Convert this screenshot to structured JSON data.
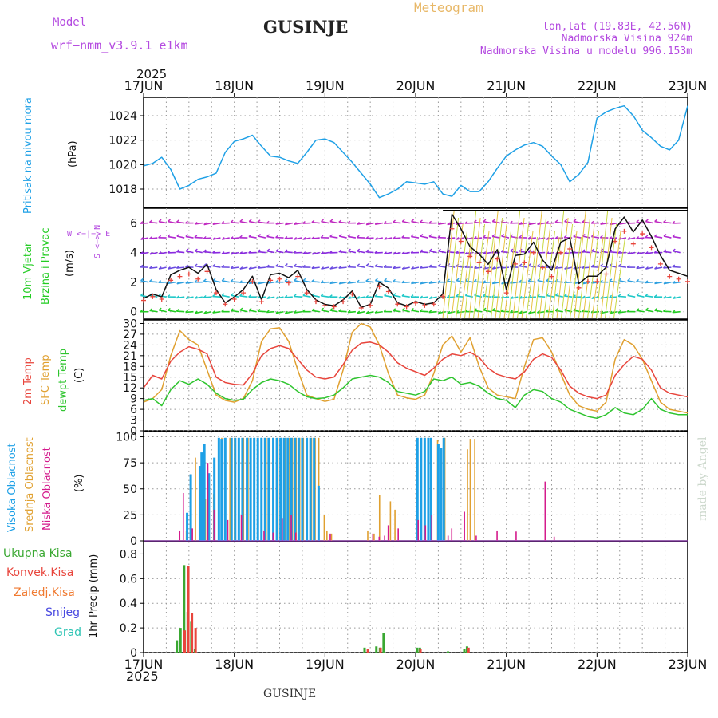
{
  "header": {
    "model_label": "Model",
    "model_name": "wrf−nmm_v3.9.1  e1km",
    "title": "GUSINJE",
    "meteogram": "Meteogram",
    "lonlat": "lon,lat (19.83E, 42.56N)",
    "elevation": "Nadmorska Visina 924m",
    "model_elevation": "Nadmorska Visina u modelu 996.153m",
    "year": "2025",
    "bottom_year": "2025",
    "footer": "GUSINJE",
    "credit": "made by Angel"
  },
  "colors": {
    "pressure": "#1ea0e6",
    "temp2m": "#e8453c",
    "sfc": "#e0a030",
    "dewpt": "#2ec42e",
    "high_cloud": "#1ea0e6",
    "mid_cloud": "#e0a030",
    "low_cloud": "#d41b8c",
    "total_rain": "#3aa832",
    "conv_rain": "#e8453c",
    "frozen": "#f07a30",
    "snow": "#4a4ae0",
    "hail": "#2ec4b4",
    "wind_label": "#22cc22",
    "model": "#b44ae0",
    "meteogram": "#e8b868"
  },
  "panel_labels": {
    "pressure": {
      "name": "Pritisak na nivou mora",
      "unit": "(hPa)"
    },
    "wind": {
      "name1": "10m Vjetar",
      "name2": "Brzina i Pravac",
      "unit": "(m/s)",
      "compass": "W <−|−> E",
      "compass2": "S <−> N"
    },
    "temp": {
      "name1": "2m Temp",
      "name2": "SFC Temp",
      "name3": "dewpt Temp",
      "unit": "(C)"
    },
    "cloud": {
      "name1": "Visoka Oblacnost",
      "name2": "Srednja Oblacnost",
      "name3": "Niska Oblacnost",
      "unit": "(%)"
    },
    "precip": {
      "items": [
        "Ukupna Kisa",
        "Konvek.Kisa",
        "Zaledj.Kisa",
        "Snijeg",
        "Grad"
      ],
      "unit": "1hr Precip (mm)"
    }
  },
  "chart_data": [
    {
      "type": "line",
      "panel": "pressure",
      "x_unit": "days since 17JUN 00UTC",
      "x_ticks": [
        "17JUN",
        "18JUN",
        "19JUN",
        "20JUN",
        "21JUN",
        "22JUN",
        "23JUN"
      ],
      "ylim": [
        1016.5,
        1025.5
      ],
      "y_ticks": [
        1018,
        1020,
        1022,
        1024
      ],
      "series": [
        {
          "name": "Pritisak na nivou mora",
          "x": [
            0,
            0.1,
            0.2,
            0.3,
            0.4,
            0.5,
            0.6,
            0.7,
            0.8,
            0.9,
            1.0,
            1.1,
            1.2,
            1.3,
            1.4,
            1.5,
            1.6,
            1.7,
            1.8,
            1.9,
            2.0,
            2.1,
            2.2,
            2.3,
            2.4,
            2.5,
            2.6,
            2.7,
            2.8,
            2.9,
            3.0,
            3.1,
            3.2,
            3.3,
            3.4,
            3.5,
            3.6,
            3.7,
            3.8,
            3.9,
            4.0,
            4.1,
            4.2,
            4.3,
            4.4,
            4.5,
            4.6,
            4.7,
            4.8,
            4.9,
            5.0,
            5.1,
            5.2,
            5.3,
            5.4,
            5.5,
            5.6,
            5.7,
            5.8,
            5.9,
            6.0
          ],
          "values": [
            1019.9,
            1020.1,
            1020.6,
            1019.6,
            1018.0,
            1018.3,
            1018.8,
            1019.0,
            1019.3,
            1021.0,
            1021.9,
            1022.1,
            1022.4,
            1021.5,
            1020.7,
            1020.6,
            1020.3,
            1020.1,
            1021.0,
            1022.0,
            1022.1,
            1021.8,
            1021.0,
            1020.2,
            1019.3,
            1018.4,
            1017.3,
            1017.6,
            1018.0,
            1018.6,
            1018.5,
            1018.4,
            1018.6,
            1017.6,
            1017.4,
            1018.3,
            1017.8,
            1017.8,
            1018.6,
            1019.7,
            1020.7,
            1021.2,
            1021.6,
            1021.8,
            1021.5,
            1020.7,
            1020.0,
            1018.6,
            1019.2,
            1020.2,
            1023.8,
            1024.3,
            1024.6,
            1024.8,
            1024.0,
            1022.8,
            1022.2,
            1021.5,
            1021.2,
            1022.0,
            1024.8
          ]
        }
      ]
    },
    {
      "type": "line",
      "panel": "wind",
      "x_unit": "days since 17JUN 00UTC",
      "ylim": [
        -0.5,
        7
      ],
      "y_ticks": [
        0,
        2,
        4,
        6
      ],
      "series": [
        {
          "name": "10m Vjetar brzina",
          "x": [
            0,
            0.1,
            0.2,
            0.3,
            0.4,
            0.5,
            0.6,
            0.7,
            0.8,
            0.9,
            1.0,
            1.1,
            1.2,
            1.3,
            1.4,
            1.5,
            1.6,
            1.7,
            1.8,
            1.9,
            2.0,
            2.1,
            2.2,
            2.3,
            2.4,
            2.5,
            2.6,
            2.7,
            2.8,
            2.9,
            3.0,
            3.1,
            3.2,
            3.3,
            3.4,
            3.5,
            3.6,
            3.7,
            3.8,
            3.9,
            4.0,
            4.1,
            4.2,
            4.3,
            4.4,
            4.5,
            4.6,
            4.7,
            4.8,
            4.9,
            5.0,
            5.1,
            5.2,
            5.3,
            5.4,
            5.5,
            5.6,
            5.7,
            5.8,
            5.9,
            6.0
          ],
          "values": [
            0.9,
            1.2,
            1.0,
            2.5,
            2.8,
            3.0,
            2.6,
            3.2,
            1.5,
            0.6,
            1.0,
            1.5,
            2.4,
            0.8,
            2.5,
            2.6,
            2.3,
            2.8,
            1.5,
            0.8,
            0.5,
            0.4,
            0.8,
            1.4,
            0.3,
            0.5,
            2.0,
            1.6,
            0.6,
            0.4,
            0.7,
            0.5,
            0.6,
            1.2,
            6.6,
            5.6,
            4.4,
            3.9,
            3.2,
            4.2,
            1.5,
            3.8,
            3.9,
            4.7,
            3.5,
            2.8,
            4.7,
            5.0,
            1.9,
            2.4,
            2.4,
            3.0,
            5.6,
            6.4,
            5.4,
            6.2,
            5.1,
            3.8,
            2.8,
            2.6,
            2.4
          ]
        }
      ],
      "wind_rows_ms": [
        0,
        1,
        2,
        3,
        4,
        5,
        6
      ]
    },
    {
      "type": "line",
      "panel": "temp",
      "x_unit": "days since 17JUN 00UTC",
      "ylim": [
        0,
        31
      ],
      "y_ticks": [
        0,
        3,
        6,
        9,
        12,
        15,
        18,
        21,
        24,
        27,
        30
      ],
      "series": [
        {
          "name": "2m Temp",
          "x": [
            0,
            0.1,
            0.2,
            0.3,
            0.4,
            0.5,
            0.6,
            0.7,
            0.8,
            0.9,
            1.0,
            1.1,
            1.2,
            1.3,
            1.4,
            1.5,
            1.6,
            1.7,
            1.8,
            1.9,
            2.0,
            2.1,
            2.2,
            2.3,
            2.4,
            2.5,
            2.6,
            2.7,
            2.8,
            2.9,
            3.0,
            3.1,
            3.2,
            3.3,
            3.4,
            3.5,
            3.6,
            3.7,
            3.8,
            3.9,
            4.0,
            4.1,
            4.2,
            4.3,
            4.4,
            4.5,
            4.6,
            4.7,
            4.8,
            4.9,
            5.0,
            5.1,
            5.2,
            5.3,
            5.4,
            5.5,
            5.6,
            5.7,
            5.8,
            5.9,
            6.0
          ],
          "values": [
            12.0,
            15.5,
            14.5,
            19.5,
            22.0,
            23.5,
            22.8,
            21.5,
            15.0,
            13.5,
            13.0,
            12.8,
            16.0,
            21.0,
            23.0,
            23.8,
            23.0,
            20.0,
            17.0,
            15.0,
            14.5,
            15.0,
            18.5,
            22.5,
            24.5,
            24.8,
            24.0,
            22.0,
            19.0,
            17.5,
            16.5,
            15.5,
            17.5,
            20.0,
            21.5,
            21.0,
            22.0,
            20.5,
            17.5,
            15.8,
            15.0,
            14.5,
            16.5,
            20.0,
            21.5,
            20.5,
            17.0,
            12.5,
            10.5,
            9.5,
            9.0,
            10.0,
            15.5,
            18.5,
            20.8,
            20.0,
            17.0,
            12.0,
            10.5,
            10.0,
            9.5
          ]
        },
        {
          "name": "SFC Temp",
          "x": [
            0,
            0.1,
            0.2,
            0.3,
            0.4,
            0.5,
            0.6,
            0.7,
            0.8,
            0.9,
            1.0,
            1.1,
            1.2,
            1.3,
            1.4,
            1.5,
            1.6,
            1.7,
            1.8,
            1.9,
            2.0,
            2.1,
            2.2,
            2.3,
            2.4,
            2.5,
            2.6,
            2.7,
            2.8,
            2.9,
            3.0,
            3.1,
            3.2,
            3.3,
            3.4,
            3.5,
            3.6,
            3.7,
            3.8,
            3.9,
            4.0,
            4.1,
            4.2,
            4.3,
            4.4,
            4.5,
            4.6,
            4.7,
            4.8,
            4.9,
            5.0,
            5.1,
            5.2,
            5.3,
            5.4,
            5.5,
            5.6,
            5.7,
            5.8,
            5.9,
            6.0
          ],
          "values": [
            8.0,
            9.0,
            11.5,
            21.0,
            28.0,
            25.5,
            24.0,
            17.0,
            10.0,
            8.5,
            8.0,
            9.0,
            14.0,
            25.0,
            28.5,
            28.8,
            25.0,
            17.0,
            10.0,
            9.0,
            8.2,
            8.8,
            17.0,
            27.5,
            30.0,
            29.0,
            24.0,
            16.0,
            10.0,
            9.2,
            8.8,
            10.0,
            16.0,
            24.0,
            26.5,
            22.0,
            26.0,
            18.0,
            12.0,
            10.0,
            9.5,
            9.0,
            18.0,
            25.5,
            26.0,
            22.0,
            16.0,
            10.0,
            7.0,
            6.0,
            5.5,
            8.0,
            20.0,
            25.5,
            24.0,
            20.0,
            14.0,
            8.0,
            6.0,
            5.5,
            5.0
          ]
        },
        {
          "name": "dewpt Temp",
          "x": [
            0,
            0.1,
            0.2,
            0.3,
            0.4,
            0.5,
            0.6,
            0.7,
            0.8,
            0.9,
            1.0,
            1.1,
            1.2,
            1.3,
            1.4,
            1.5,
            1.6,
            1.7,
            1.8,
            1.9,
            2.0,
            2.1,
            2.2,
            2.3,
            2.4,
            2.5,
            2.6,
            2.7,
            2.8,
            2.9,
            3.0,
            3.1,
            3.2,
            3.3,
            3.4,
            3.5,
            3.6,
            3.7,
            3.8,
            3.9,
            4.0,
            4.1,
            4.2,
            4.3,
            4.4,
            4.5,
            4.6,
            4.7,
            4.8,
            4.9,
            5.0,
            5.1,
            5.2,
            5.3,
            5.4,
            5.5,
            5.6,
            5.7,
            5.8,
            5.9,
            6.0
          ],
          "values": [
            8.5,
            9.0,
            7.0,
            11.5,
            14.0,
            13.0,
            14.5,
            13.0,
            10.5,
            9.0,
            8.5,
            8.8,
            11.5,
            13.5,
            14.5,
            14.0,
            13.0,
            11.0,
            9.5,
            9.0,
            9.2,
            10.0,
            12.0,
            14.5,
            15.0,
            15.5,
            15.0,
            13.5,
            11.0,
            10.5,
            10.0,
            11.0,
            14.5,
            14.0,
            15.0,
            13.0,
            13.5,
            12.5,
            10.5,
            9.0,
            8.5,
            6.5,
            10.0,
            11.5,
            11.0,
            9.0,
            8.0,
            6.0,
            5.0,
            4.0,
            3.5,
            4.5,
            6.5,
            5.0,
            4.5,
            6.0,
            9.0,
            6.0,
            5.0,
            4.5,
            4.5
          ]
        }
      ]
    },
    {
      "type": "bar",
      "panel": "cloud",
      "x_unit": "days since 17JUN 00UTC",
      "ylim": [
        0,
        105
      ],
      "y_ticks": [
        0,
        25,
        50,
        75,
        100
      ],
      "series": [
        {
          "name": "Visoka Oblacnost",
          "x": [
            0.48,
            0.52,
            0.62,
            0.64,
            0.67,
            0.72,
            0.78,
            0.83,
            0.86,
            0.9,
            0.97,
            1.01,
            1.05,
            1.09,
            1.14,
            1.18,
            1.22,
            1.26,
            1.3,
            1.34,
            1.38,
            1.43,
            1.47,
            1.51,
            1.55,
            1.59,
            1.63,
            1.67,
            1.71,
            1.75,
            1.8,
            1.84,
            1.88,
            1.93,
            3.02,
            3.06,
            3.1,
            3.14,
            3.17,
            3.25,
            3.28,
            3.31
          ],
          "values": [
            27,
            64,
            72,
            85,
            93,
            65,
            80,
            99,
            98,
            99,
            99,
            99,
            99,
            99,
            99,
            99,
            99,
            99,
            99,
            99,
            99,
            99,
            99,
            99,
            99,
            99,
            99,
            99,
            99,
            99,
            99,
            99,
            99,
            53,
            99,
            99,
            99,
            99,
            99,
            93,
            89,
            99
          ]
        },
        {
          "name": "Srednja Oblacnost",
          "x": [
            0.45,
            0.5,
            0.55,
            0.6,
            0.66,
            0.75,
            0.84,
            0.88,
            0.93,
            0.98,
            1.03,
            1.08,
            1.13,
            1.2,
            1.24,
            1.28,
            1.33,
            1.37,
            1.41,
            1.46,
            1.5,
            1.54,
            1.58,
            1.62,
            1.66,
            1.7,
            1.74,
            1.78,
            1.83,
            1.87,
            1.91,
            1.97,
            2.0,
            2.05,
            2.45,
            2.52,
            2.58,
            2.7,
            2.75,
            3.0,
            3.04,
            3.08,
            3.12,
            3.22,
            3.3,
            3.55,
            3.58,
            3.63
          ],
          "values": [
            10,
            30,
            80,
            72,
            40,
            45,
            99,
            99,
            99,
            99,
            99,
            99,
            99,
            99,
            99,
            99,
            99,
            99,
            99,
            99,
            99,
            99,
            99,
            99,
            99,
            99,
            99,
            99,
            99,
            99,
            99,
            25,
            10,
            7,
            10,
            7,
            44,
            38,
            30,
            38,
            99,
            99,
            99,
            97,
            99,
            88,
            98,
            98
          ]
        },
        {
          "name": "Niska Oblacnost",
          "x": [
            0.42,
            0.46,
            0.56,
            0.73,
            0.8,
            0.95,
            1.1,
            1.35,
            1.45,
            1.55,
            1.65,
            1.7,
            2.08,
            2.55,
            2.62,
            2.68,
            2.72,
            2.83,
            3.05,
            3.13,
            3.2,
            3.38,
            3.42,
            3.56,
            3.69,
            3.92,
            4.13,
            4.45,
            4.55
          ],
          "values": [
            10,
            46,
            12,
            75,
            30,
            20,
            25,
            10,
            8,
            22,
            25,
            8,
            7,
            7,
            4,
            5,
            15,
            12,
            20,
            15,
            25,
            5,
            12,
            28,
            5,
            10,
            9,
            57,
            4
          ]
        }
      ]
    },
    {
      "type": "bar",
      "panel": "precip",
      "x_unit": "days since 17JUN 00UTC",
      "ylim": [
        0,
        0.9
      ],
      "y_ticks": [
        0,
        0.2,
        0.4,
        0.6,
        0.8
      ],
      "series": [
        {
          "name": "Ukupna Kisa",
          "x": [
            0.38,
            0.42,
            0.46,
            0.5,
            0.54,
            0.58,
            2.45,
            2.58,
            2.62,
            2.66,
            3.03,
            3.06,
            3.37,
            3.55,
            3.58
          ],
          "values": [
            0.1,
            0.2,
            0.71,
            0.33,
            0.25,
            0.03,
            0.04,
            0.05,
            0.04,
            0.16,
            0.04,
            0.04,
            0.01,
            0.03,
            0.05
          ]
        },
        {
          "name": "Konvek.Kisa",
          "x": [
            0.44,
            0.48,
            0.52,
            0.56,
            2.46,
            2.6,
            3.04,
            3.57
          ],
          "values": [
            0.18,
            0.7,
            0.32,
            0.2,
            0.03,
            0.04,
            0.03,
            0.04
          ]
        }
      ]
    }
  ]
}
